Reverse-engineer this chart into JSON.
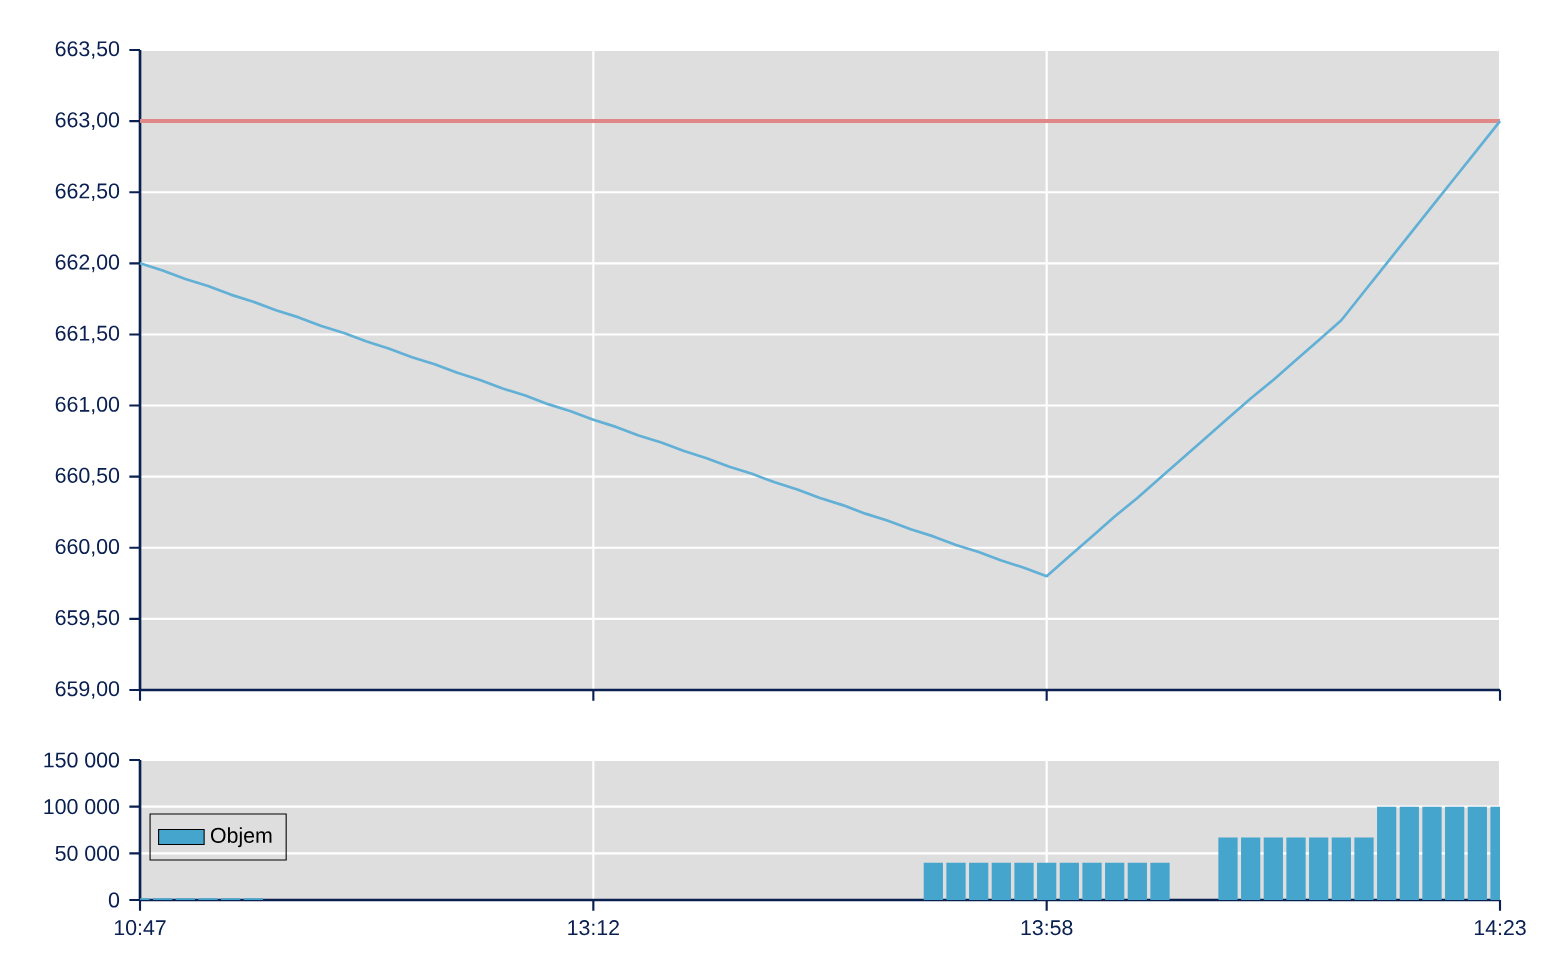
{
  "chart_data": [
    {
      "type": "line",
      "categories": [
        null,
        null,
        null,
        null,
        null,
        null,
        null,
        null,
        null,
        null,
        null,
        null,
        null,
        null,
        null,
        null,
        null,
        null,
        null,
        null,
        null,
        null,
        null,
        null,
        null,
        null,
        null,
        null,
        null,
        null,
        null,
        null,
        null,
        null,
        null,
        null,
        null,
        null,
        null,
        null,
        null,
        null,
        null,
        null,
        null,
        null,
        null,
        null,
        null,
        null,
        null,
        null,
        null,
        null,
        null,
        null,
        null,
        null,
        null,
        null,
        null
      ],
      "ylim": [
        659,
        663.5
      ],
      "yticks": [
        {
          "value": 659,
          "label": "659,00"
        },
        {
          "value": 659.5,
          "label": "659,50"
        },
        {
          "value": 660,
          "label": "660,00"
        },
        {
          "value": 660.5,
          "label": "660,50"
        },
        {
          "value": 661,
          "label": "661,00"
        },
        {
          "value": 661.5,
          "label": "661,50"
        },
        {
          "value": 662,
          "label": "662,00"
        },
        {
          "value": 662.5,
          "label": "662,50"
        },
        {
          "value": 663,
          "label": "663,00"
        },
        {
          "value": 663.5,
          "label": "663,50"
        }
      ],
      "grid": true,
      "tick_labels": "y",
      "series": [
        {
          "color": "#62b0d6",
          "values": [
            662.0,
            661.95,
            661.89,
            661.84,
            661.78,
            661.73,
            661.67,
            661.62,
            661.56,
            661.51,
            661.45,
            661.4,
            661.34,
            661.29,
            661.23,
            661.18,
            661.12,
            661.07,
            661.01,
            660.96,
            660.9,
            660.85,
            660.79,
            660.74,
            660.68,
            660.63,
            660.57,
            660.52,
            660.46,
            660.41,
            660.35,
            660.3,
            660.24,
            660.19,
            660.13,
            660.08,
            660.02,
            659.97,
            659.91,
            659.86,
            659.8,
            659.94,
            660.08,
            660.22,
            660.35,
            660.49,
            660.63,
            660.77,
            660.91,
            661.05,
            661.18,
            661.32,
            661.46,
            661.6,
            661.8,
            662.0,
            662.2,
            662.4,
            662.6,
            662.8,
            663.0
          ]
        }
      ],
      "ref_lines": [
        {
          "axis": "y",
          "value": 663,
          "color": "#e08888"
        }
      ]
    },
    {
      "type": "bar",
      "categories": [
        "10:47",
        null,
        null,
        null,
        null,
        null,
        null,
        null,
        null,
        null,
        null,
        null,
        null,
        null,
        null,
        null,
        null,
        null,
        null,
        null,
        "13:12",
        null,
        null,
        null,
        null,
        null,
        null,
        null,
        null,
        null,
        null,
        null,
        null,
        null,
        null,
        null,
        null,
        null,
        null,
        null,
        "13:58",
        null,
        null,
        null,
        null,
        null,
        null,
        null,
        null,
        null,
        null,
        null,
        null,
        null,
        null,
        null,
        null,
        null,
        null,
        null,
        "14:23"
      ],
      "ylim": [
        0,
        150000
      ],
      "yticks": [
        {
          "value": 0,
          "label": "0"
        },
        {
          "value": 50000,
          "label": "50 000"
        },
        {
          "value": 100000,
          "label": "100 000"
        },
        {
          "value": 150000,
          "label": "150 000"
        }
      ],
      "grid": true,
      "legend": "left",
      "series": [
        {
          "name": "Objem",
          "color": "#46a5cc",
          "values": [
            2000,
            2000,
            2000,
            2000,
            2000,
            2000,
            null,
            null,
            null,
            null,
            null,
            null,
            null,
            null,
            null,
            null,
            null,
            null,
            null,
            null,
            null,
            null,
            null,
            null,
            null,
            null,
            null,
            null,
            null,
            null,
            null,
            null,
            null,
            null,
            null,
            40000,
            40000,
            40000,
            40000,
            40000,
            40000,
            40000,
            40000,
            40000,
            40000,
            40000,
            null,
            null,
            67000,
            67000,
            67000,
            67000,
            67000,
            67000,
            67000,
            100000,
            100000,
            100000,
            100000,
            100000,
            100000
          ]
        }
      ]
    }
  ]
}
